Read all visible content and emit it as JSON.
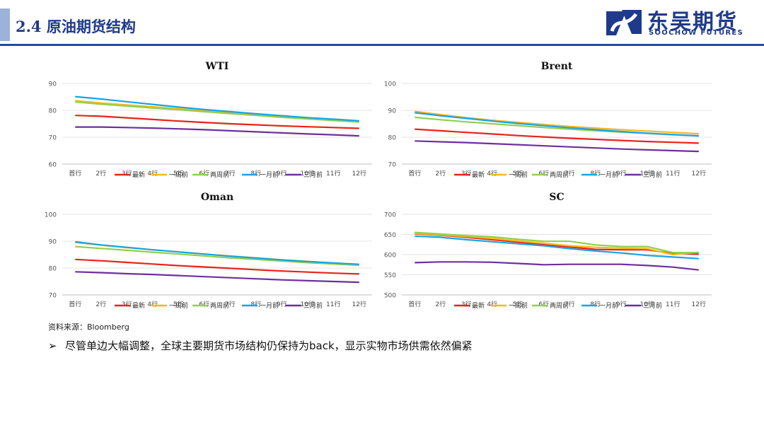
{
  "header": {
    "title": "2.4 原油期货结构",
    "logo_cn": "东吴期货",
    "logo_en": "SOOCHOW FUTURES"
  },
  "colors": {
    "accent": "#1f4aa8",
    "series": [
      "#e8231a",
      "#f6b91a",
      "#8fd14f",
      "#1aa3e8",
      "#6e2f9e"
    ]
  },
  "chart_data": [
    {
      "type": "line",
      "title": "WTI",
      "categories": [
        "首行",
        "2行",
        "3行",
        "4行",
        "5行",
        "6行",
        "7行",
        "8行",
        "9行",
        "10行",
        "11行",
        "12行"
      ],
      "ylim": [
        60,
        90
      ],
      "yticks": [
        60,
        70,
        80,
        90
      ],
      "grid": true,
      "legend": "bottom",
      "series": [
        {
          "name": "最新",
          "values": [
            78.1,
            77.8,
            77.2,
            76.6,
            76.0,
            75.5,
            75.0,
            74.6,
            74.2,
            73.9,
            73.6,
            73.3
          ]
        },
        {
          "name": "一周前",
          "values": [
            83.6,
            82.7,
            82.0,
            81.3,
            80.6,
            79.9,
            79.2,
            78.5,
            77.8,
            77.1,
            76.5,
            75.9
          ]
        },
        {
          "name": "两周前",
          "values": [
            83.1,
            82.3,
            81.6,
            80.9,
            80.2,
            79.5,
            78.8,
            78.1,
            77.4,
            76.8,
            76.2,
            75.6
          ]
        },
        {
          "name": "一月前",
          "values": [
            85.1,
            84.2,
            83.2,
            82.2,
            81.2,
            80.3,
            79.5,
            78.7,
            78.0,
            77.3,
            76.7,
            76.1
          ]
        },
        {
          "name": "三月前",
          "values": [
            73.8,
            73.8,
            73.6,
            73.4,
            73.1,
            72.8,
            72.4,
            72.0,
            71.6,
            71.2,
            70.9,
            70.5
          ]
        }
      ]
    },
    {
      "type": "line",
      "title": "Brent",
      "categories": [
        "首行",
        "2行",
        "3行",
        "4行",
        "5行",
        "6行",
        "7行",
        "8行",
        "9行",
        "10行",
        "11行",
        "12行"
      ],
      "ylim": [
        70,
        100
      ],
      "yticks": [
        70,
        80,
        90,
        100
      ],
      "grid": true,
      "legend": "bottom",
      "series": [
        {
          "name": "最新",
          "values": [
            83.0,
            82.4,
            81.8,
            81.2,
            80.6,
            80.1,
            79.6,
            79.2,
            78.8,
            78.4,
            78.1,
            77.8
          ]
        },
        {
          "name": "一周前",
          "values": [
            89.6,
            88.4,
            87.3,
            86.3,
            85.5,
            84.7,
            84.0,
            83.4,
            82.8,
            82.3,
            81.8,
            81.3
          ]
        },
        {
          "name": "两周前",
          "values": [
            87.4,
            86.5,
            85.7,
            85.0,
            84.3,
            83.6,
            83.0,
            82.4,
            81.9,
            81.4,
            80.9,
            80.5
          ]
        },
        {
          "name": "一月前",
          "values": [
            89.1,
            88.0,
            87.0,
            86.0,
            85.1,
            84.3,
            83.5,
            82.8,
            82.1,
            81.5,
            81.0,
            80.5
          ]
        },
        {
          "name": "三月前",
          "values": [
            78.6,
            78.3,
            78.0,
            77.6,
            77.2,
            76.8,
            76.4,
            76.0,
            75.6,
            75.3,
            75.0,
            74.7
          ]
        }
      ]
    },
    {
      "type": "line",
      "title": "Oman",
      "categories": [
        "首行",
        "2行",
        "3行",
        "4行",
        "5行",
        "6行",
        "7行",
        "8行",
        "9行",
        "10行",
        "11行",
        "12行"
      ],
      "ylim": [
        70,
        100
      ],
      "yticks": [
        70,
        80,
        90,
        100
      ],
      "grid": true,
      "legend": "bottom",
      "series": [
        {
          "name": "最新",
          "values": [
            83.2,
            82.7,
            82.1,
            81.5,
            80.9,
            80.4,
            79.9,
            79.4,
            78.9,
            78.5,
            78.1,
            77.8
          ]
        },
        {
          "name": "一周前",
          "values": [
            89.5,
            88.5,
            87.6,
            86.8,
            86.0,
            85.2,
            84.5,
            83.8,
            83.1,
            82.5,
            81.9,
            81.3
          ]
        },
        {
          "name": "两周前",
          "values": [
            88.0,
            87.3,
            86.6,
            85.9,
            85.2,
            84.5,
            83.8,
            83.2,
            82.6,
            82.0,
            81.5,
            81.0
          ]
        },
        {
          "name": "一月前",
          "values": [
            89.8,
            88.6,
            87.7,
            86.8,
            86.0,
            85.2,
            84.4,
            83.7,
            83.0,
            82.4,
            81.9,
            81.4
          ]
        },
        {
          "name": "三月前",
          "values": [
            78.6,
            78.3,
            77.9,
            77.6,
            77.2,
            76.8,
            76.4,
            76.0,
            75.6,
            75.3,
            75.0,
            74.7
          ]
        }
      ]
    },
    {
      "type": "line",
      "title": "SC",
      "categories": [
        "首行",
        "2行",
        "3行",
        "4行",
        "5行",
        "6行",
        "7行",
        "8行",
        "9行",
        "10行",
        "11行",
        "12行"
      ],
      "ylim": [
        500,
        700
      ],
      "yticks": [
        500,
        550,
        600,
        650,
        700
      ],
      "grid": true,
      "legend": "bottom",
      "series": [
        {
          "name": "最新",
          "values": [
            652,
            648,
            643,
            637,
            631,
            625,
            619,
            613,
            612,
            612,
            603,
            601
          ]
        },
        {
          "name": "一周前",
          "values": [
            653,
            649,
            645,
            640,
            634,
            628,
            622,
            618,
            616,
            615,
            600,
            606
          ]
        },
        {
          "name": "两周前",
          "values": [
            655,
            651,
            647,
            644,
            638,
            633,
            633,
            624,
            620,
            620,
            605,
            605
          ]
        },
        {
          "name": "一月前",
          "values": [
            646,
            643,
            637,
            632,
            627,
            622,
            615,
            609,
            604,
            598,
            594,
            590
          ]
        },
        {
          "name": "三月前",
          "values": [
            580,
            582,
            582,
            581,
            578,
            575,
            576,
            576,
            576,
            573,
            569,
            562
          ]
        }
      ]
    }
  ],
  "notes": {
    "source": "资料来源：Bloomberg",
    "bullet_marker": "➢",
    "bullet": "尽管单边大幅调整，全球主要期货市场结构仍保持为back，显示实物市场供需依然偏紧"
  }
}
